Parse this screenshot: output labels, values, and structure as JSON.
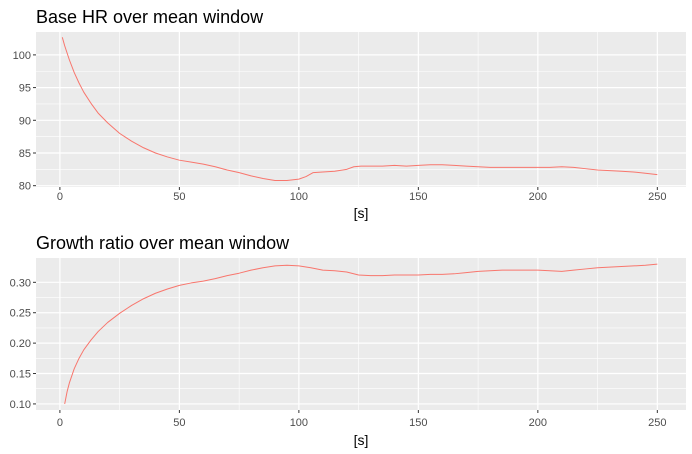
{
  "colors": {
    "panel_background": "#ebebeb",
    "grid": "#ffffff",
    "line": "#f8766d",
    "tick_text": "#4d4d4d"
  },
  "chart_data": [
    {
      "type": "line",
      "title": "Base HR over mean window",
      "xlabel": "[s]",
      "ylabel": "",
      "xlim": [
        -10,
        262
      ],
      "ylim": [
        79.8,
        103.5
      ],
      "xticks": [
        0,
        50,
        100,
        150,
        200,
        250
      ],
      "yticks": [
        80,
        85,
        90,
        95,
        100
      ],
      "grid": true,
      "series": [
        {
          "x": [
            1,
            2,
            4,
            6,
            8,
            10,
            13,
            16,
            20,
            25,
            30,
            35,
            40,
            45,
            50,
            55,
            60,
            65,
            70,
            75,
            80,
            85,
            90,
            95,
            100,
            103,
            106,
            110,
            115,
            120,
            123,
            126,
            130,
            135,
            140,
            145,
            150,
            155,
            160,
            165,
            170,
            175,
            180,
            185,
            190,
            195,
            200,
            205,
            210,
            215,
            220,
            225,
            230,
            235,
            240,
            245,
            250
          ],
          "y": [
            102.7,
            101.4,
            99.2,
            97.3,
            95.7,
            94.3,
            92.6,
            91.1,
            89.6,
            88.0,
            86.8,
            85.8,
            85.0,
            84.4,
            83.9,
            83.6,
            83.3,
            82.9,
            82.4,
            82.0,
            81.5,
            81.1,
            80.8,
            80.8,
            81.0,
            81.4,
            82.0,
            82.1,
            82.2,
            82.5,
            82.9,
            83.0,
            83.0,
            83.0,
            83.1,
            83.0,
            83.1,
            83.2,
            83.2,
            83.1,
            83.0,
            82.9,
            82.8,
            82.8,
            82.8,
            82.8,
            82.8,
            82.8,
            82.9,
            82.8,
            82.6,
            82.4,
            82.3,
            82.2,
            82.1,
            81.9,
            81.7
          ]
        }
      ]
    },
    {
      "type": "line",
      "title": "Growth ratio over mean window",
      "xlabel": "[s]",
      "ylabel": "",
      "xlim": [
        -10,
        262
      ],
      "ylim": [
        0.09,
        0.34
      ],
      "xticks": [
        0,
        50,
        100,
        150,
        200,
        250
      ],
      "yticks": [
        0.1,
        0.15,
        0.2,
        0.25,
        0.3
      ],
      "ytick_labels": [
        "0.10",
        "0.15",
        "0.20",
        "0.25",
        "0.30"
      ],
      "grid": true,
      "series": [
        {
          "x": [
            2,
            3,
            4,
            6,
            8,
            10,
            13,
            16,
            20,
            25,
            30,
            35,
            40,
            45,
            50,
            55,
            60,
            65,
            70,
            75,
            80,
            85,
            90,
            95,
            100,
            105,
            110,
            115,
            120,
            125,
            130,
            135,
            140,
            145,
            150,
            155,
            160,
            165,
            170,
            175,
            180,
            185,
            190,
            195,
            200,
            205,
            210,
            215,
            220,
            225,
            230,
            235,
            240,
            245,
            250
          ],
          "y": [
            0.1,
            0.12,
            0.135,
            0.158,
            0.175,
            0.189,
            0.205,
            0.219,
            0.234,
            0.249,
            0.262,
            0.273,
            0.282,
            0.289,
            0.295,
            0.299,
            0.302,
            0.306,
            0.311,
            0.315,
            0.32,
            0.324,
            0.327,
            0.328,
            0.327,
            0.324,
            0.32,
            0.319,
            0.317,
            0.312,
            0.311,
            0.311,
            0.312,
            0.312,
            0.312,
            0.313,
            0.313,
            0.314,
            0.316,
            0.318,
            0.319,
            0.32,
            0.32,
            0.32,
            0.32,
            0.319,
            0.318,
            0.32,
            0.322,
            0.324,
            0.325,
            0.326,
            0.327,
            0.328,
            0.33
          ]
        }
      ]
    }
  ]
}
